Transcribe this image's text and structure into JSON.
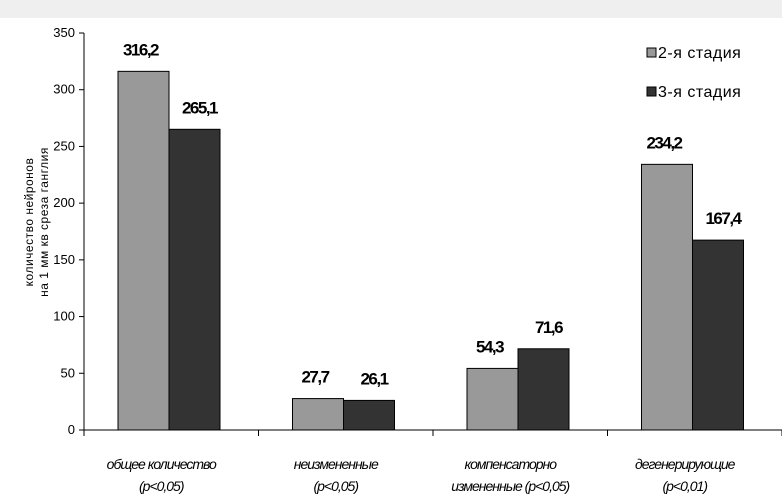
{
  "chart_data": {
    "type": "bar",
    "categories": [
      [
        "общее количество",
        "(p<0,05)"
      ],
      [
        "неизмененные",
        "(p<0,05)"
      ],
      [
        "компенсаторно",
        "измененные (p<0,05)"
      ],
      [
        "дегенерирующие",
        "(p<0,01)"
      ]
    ],
    "series": [
      {
        "name": "2-я стадия",
        "values": [
          316.2,
          27.7,
          54.3,
          234.2
        ],
        "labels": [
          "316,2",
          "27,7",
          "54,3",
          "234,2"
        ],
        "color": "#999999"
      },
      {
        "name": "3-я стадия",
        "values": [
          265.1,
          26.1,
          71.6,
          167.4
        ],
        "labels": [
          "265,1",
          "26,1",
          "71,6",
          "167,4"
        ],
        "color": "#333333"
      }
    ],
    "ylabel": [
      "количество нейронов",
      "на 1 мм кв среза ганглия"
    ],
    "ylim": [
      0,
      350
    ],
    "yticks": [
      "0",
      "50",
      "100",
      "150",
      "200",
      "250",
      "300",
      "350"
    ],
    "yticks_values": [
      0,
      50,
      100,
      150,
      200,
      250,
      300,
      350
    ],
    "grid": false,
    "legend_position": "top-right"
  }
}
